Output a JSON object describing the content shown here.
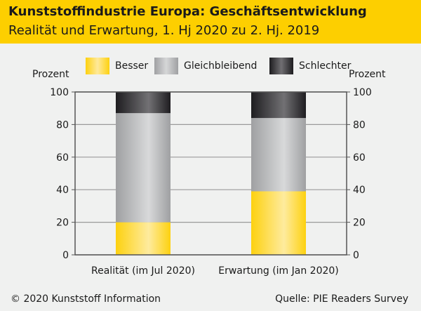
{
  "chart_data": {
    "type": "bar",
    "stacked": true,
    "title": "Kunststoffindustrie Europa: Geschäftsentwicklung",
    "subtitle": "Realität und Erwartung, 1. Hj 2020 zu 2. Hj. 2019",
    "categories": [
      "Realität (im Jul 2020)",
      "Erwartung (im Jan 2020)"
    ],
    "series": [
      {
        "name": "Besser",
        "values": [
          20,
          39
        ],
        "color": "#fdd10f"
      },
      {
        "name": "Gleichbleibend",
        "values": [
          67,
          45
        ],
        "color": "#c8c9ca"
      },
      {
        "name": "Schlechter",
        "values": [
          13,
          16
        ],
        "color": "#3a393c"
      }
    ],
    "ylabel_left": "Prozent",
    "ylabel_right": "Prozent",
    "ylim": [
      0,
      100
    ],
    "yticks": [
      0,
      20,
      40,
      60,
      80,
      100
    ],
    "grid": true,
    "legend_position": "top"
  },
  "footer": {
    "copyright": "© 2020 Kunststoff Information",
    "source": "Quelle: PIE Readers Survey"
  }
}
